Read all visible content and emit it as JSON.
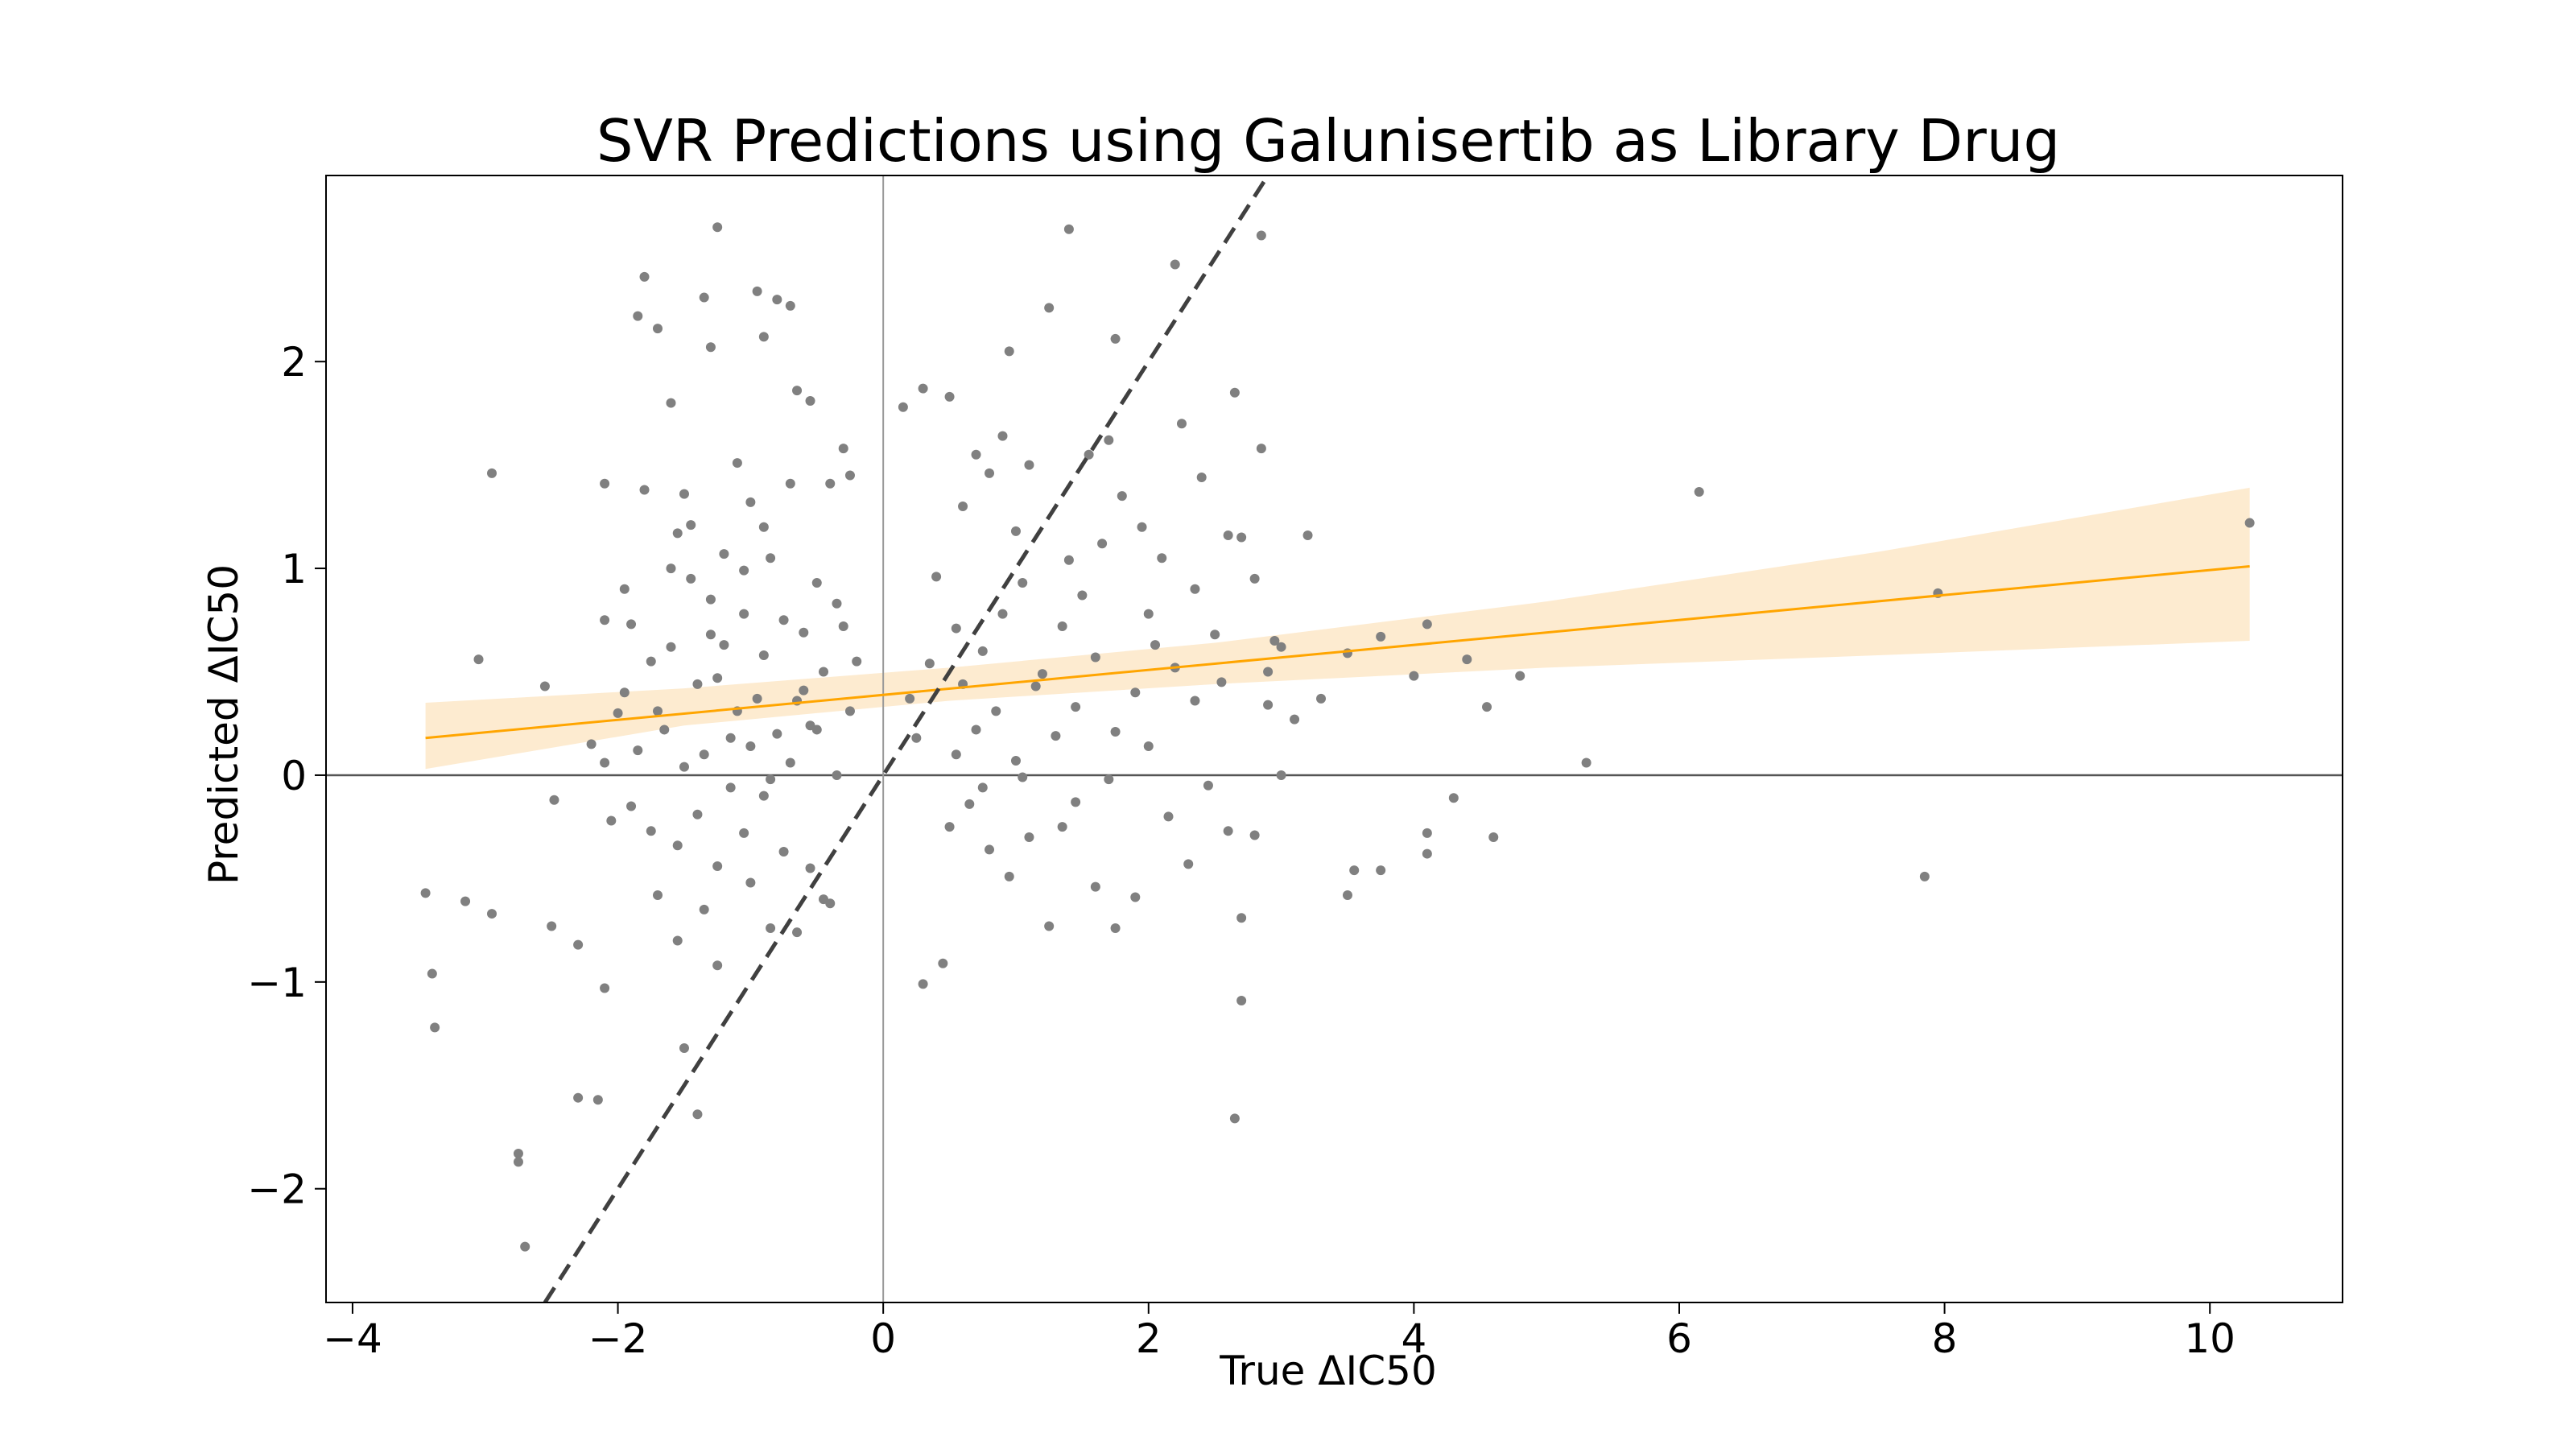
{
  "chart_data": {
    "type": "scatter",
    "title": "SVR Predictions using Galunisertib as Library Drug",
    "xlabel": "True ΔIC50",
    "ylabel": "Predicted ΔIC50",
    "xlim": [
      -4.2,
      11.0
    ],
    "ylim": [
      -2.55,
      2.9
    ],
    "x_ticks": [
      -4,
      -2,
      0,
      2,
      4,
      6,
      8,
      10
    ],
    "y_ticks": [
      -2,
      -1,
      0,
      1,
      2
    ],
    "grid": false,
    "colors": {
      "points": "#808080",
      "regression_line": "#ffa500",
      "confidence_band": "#fdebd0",
      "identity_line": "#404040",
      "zero_lines": "#555555"
    },
    "identity_line": {
      "slope": 1,
      "intercept": 0,
      "style": "dashed"
    },
    "regression": {
      "x_start": -3.45,
      "y_start": 0.18,
      "x_end": 10.3,
      "y_end": 1.01,
      "band": [
        {
          "x": -3.45,
          "lo": 0.03,
          "hi": 0.35
        },
        {
          "x": -1.5,
          "lo": 0.24,
          "hi": 0.42
        },
        {
          "x": 0.5,
          "lo": 0.36,
          "hi": 0.52
        },
        {
          "x": 2.5,
          "lo": 0.44,
          "hi": 0.64
        },
        {
          "x": 5.0,
          "lo": 0.52,
          "hi": 0.84
        },
        {
          "x": 7.5,
          "lo": 0.58,
          "hi": 1.08
        },
        {
          "x": 10.3,
          "lo": 0.65,
          "hi": 1.39
        }
      ]
    },
    "points": [
      [
        -3.45,
        -0.57
      ],
      [
        -3.4,
        -0.96
      ],
      [
        -3.38,
        -1.22
      ],
      [
        -3.15,
        -0.61
      ],
      [
        -3.05,
        0.56
      ],
      [
        -2.95,
        -0.67
      ],
      [
        -2.95,
        1.46
      ],
      [
        -2.75,
        -1.83
      ],
      [
        -2.75,
        -1.87
      ],
      [
        -2.7,
        -2.28
      ],
      [
        -2.55,
        0.43
      ],
      [
        -2.5,
        -0.73
      ],
      [
        -2.48,
        -0.12
      ],
      [
        -2.3,
        -1.56
      ],
      [
        -2.3,
        -0.82
      ],
      [
        -2.2,
        0.15
      ],
      [
        -2.15,
        -1.57
      ],
      [
        -2.1,
        -1.03
      ],
      [
        -2.05,
        -0.22
      ],
      [
        -2.1,
        0.75
      ],
      [
        -2.1,
        1.41
      ],
      [
        -1.85,
        2.22
      ],
      [
        -1.8,
        2.41
      ],
      [
        -1.7,
        2.16
      ],
      [
        -1.6,
        1.8
      ],
      [
        -1.8,
        1.38
      ],
      [
        -1.5,
        1.36
      ],
      [
        -1.35,
        2.31
      ],
      [
        -1.3,
        2.07
      ],
      [
        -1.25,
        2.65
      ],
      [
        -1.1,
        1.51
      ],
      [
        -0.95,
        2.34
      ],
      [
        -0.9,
        2.12
      ],
      [
        -0.8,
        2.3
      ],
      [
        -0.7,
        2.27
      ],
      [
        -0.65,
        1.86
      ],
      [
        -0.55,
        1.81
      ],
      [
        -0.4,
        1.41
      ],
      [
        -0.3,
        1.58
      ],
      [
        -0.25,
        1.45
      ],
      [
        -1.55,
        1.17
      ],
      [
        -1.45,
        0.95
      ],
      [
        -1.3,
        0.85
      ],
      [
        -1.2,
        1.07
      ],
      [
        -1.05,
        0.99
      ],
      [
        -0.9,
        1.2
      ],
      [
        -0.75,
        0.75
      ],
      [
        -0.6,
        0.69
      ],
      [
        -0.5,
        0.93
      ],
      [
        -0.35,
        0.83
      ],
      [
        -1.95,
        0.9
      ],
      [
        -1.9,
        0.73
      ],
      [
        -1.75,
        0.55
      ],
      [
        -1.6,
        0.62
      ],
      [
        -1.4,
        0.44
      ],
      [
        -1.25,
        0.47
      ],
      [
        -1.1,
        0.31
      ],
      [
        -0.95,
        0.37
      ],
      [
        -0.8,
        0.2
      ],
      [
        -0.6,
        0.41
      ],
      [
        -2.0,
        0.3
      ],
      [
        -1.85,
        0.12
      ],
      [
        -1.65,
        0.22
      ],
      [
        -1.5,
        0.04
      ],
      [
        -1.35,
        0.1
      ],
      [
        -1.15,
        -0.06
      ],
      [
        -1.0,
        0.14
      ],
      [
        -0.85,
        -0.02
      ],
      [
        -0.7,
        0.06
      ],
      [
        -0.5,
        0.22
      ],
      [
        -1.9,
        -0.15
      ],
      [
        -1.75,
        -0.27
      ],
      [
        -1.55,
        -0.34
      ],
      [
        -1.4,
        -0.19
      ],
      [
        -1.25,
        -0.44
      ],
      [
        -1.05,
        -0.28
      ],
      [
        -0.9,
        -0.1
      ],
      [
        -0.75,
        -0.37
      ],
      [
        -0.55,
        -0.45
      ],
      [
        -0.4,
        -0.62
      ],
      [
        -1.7,
        -0.58
      ],
      [
        -1.55,
        -0.8
      ],
      [
        -1.35,
        -0.65
      ],
      [
        -1.25,
        -0.92
      ],
      [
        -1.0,
        -0.52
      ],
      [
        -0.85,
        -0.74
      ],
      [
        -0.65,
        -0.76
      ],
      [
        -0.45,
        -0.6
      ],
      [
        -1.5,
        -1.32
      ],
      [
        -1.4,
        -1.64
      ],
      [
        -2.1,
        0.06
      ],
      [
        -1.95,
        0.4
      ],
      [
        -1.7,
        0.31
      ],
      [
        -1.3,
        0.68
      ],
      [
        -1.05,
        0.78
      ],
      [
        -0.9,
        0.58
      ],
      [
        -0.65,
        0.36
      ],
      [
        -0.45,
        0.5
      ],
      [
        -0.3,
        0.72
      ],
      [
        -0.2,
        0.55
      ],
      [
        -1.6,
        1.0
      ],
      [
        -1.45,
        1.21
      ],
      [
        -1.2,
        0.63
      ],
      [
        -1.0,
        1.32
      ],
      [
        -0.85,
        1.05
      ],
      [
        -0.7,
        1.41
      ],
      [
        -0.55,
        0.24
      ],
      [
        -0.35,
        0.0
      ],
      [
        -0.25,
        0.31
      ],
      [
        -1.15,
        0.18
      ],
      [
        0.15,
        1.78
      ],
      [
        0.3,
        1.87
      ],
      [
        0.5,
        1.83
      ],
      [
        0.45,
        -0.91
      ],
      [
        0.3,
        -1.01
      ],
      [
        0.2,
        0.37
      ],
      [
        0.35,
        0.54
      ],
      [
        0.55,
        0.71
      ],
      [
        0.4,
        0.96
      ],
      [
        0.25,
        0.18
      ],
      [
        0.6,
        1.3
      ],
      [
        0.7,
        1.55
      ],
      [
        0.8,
        1.46
      ],
      [
        0.9,
        1.64
      ],
      [
        1.0,
        1.18
      ],
      [
        1.1,
        1.5
      ],
      [
        1.25,
        2.26
      ],
      [
        1.4,
        1.04
      ],
      [
        1.55,
        1.55
      ],
      [
        1.7,
        1.62
      ],
      [
        0.6,
        0.44
      ],
      [
        0.75,
        0.6
      ],
      [
        0.9,
        0.78
      ],
      [
        1.05,
        0.93
      ],
      [
        1.2,
        0.49
      ],
      [
        1.35,
        0.72
      ],
      [
        1.5,
        0.87
      ],
      [
        1.65,
        1.12
      ],
      [
        1.8,
        1.35
      ],
      [
        1.95,
        1.2
      ],
      [
        0.55,
        0.1
      ],
      [
        0.7,
        0.22
      ],
      [
        0.85,
        0.31
      ],
      [
        1.0,
        0.07
      ],
      [
        1.15,
        0.43
      ],
      [
        1.3,
        0.19
      ],
      [
        1.45,
        0.33
      ],
      [
        1.6,
        0.57
      ],
      [
        1.75,
        0.21
      ],
      [
        1.9,
        0.4
      ],
      [
        0.5,
        -0.25
      ],
      [
        0.65,
        -0.14
      ],
      [
        0.8,
        -0.36
      ],
      [
        0.95,
        -0.49
      ],
      [
        1.1,
        -0.3
      ],
      [
        1.25,
        -0.73
      ],
      [
        1.45,
        -0.13
      ],
      [
        1.6,
        -0.54
      ],
      [
        1.75,
        -0.74
      ],
      [
        1.9,
        -0.59
      ],
      [
        2.0,
        0.78
      ],
      [
        2.1,
        1.05
      ],
      [
        2.2,
        0.52
      ],
      [
        2.35,
        0.9
      ],
      [
        2.5,
        0.68
      ],
      [
        2.6,
        1.16
      ],
      [
        2.7,
        1.15
      ],
      [
        2.8,
        0.95
      ],
      [
        2.9,
        0.5
      ],
      [
        2.95,
        0.65
      ],
      [
        2.0,
        0.14
      ],
      [
        2.15,
        -0.2
      ],
      [
        2.3,
        -0.43
      ],
      [
        2.45,
        -0.05
      ],
      [
        2.6,
        -0.27
      ],
      [
        2.7,
        -0.69
      ],
      [
        2.8,
        -0.29
      ],
      [
        2.9,
        0.34
      ],
      [
        3.0,
        0.0
      ],
      [
        3.1,
        0.27
      ],
      [
        2.25,
        1.7
      ],
      [
        2.4,
        1.44
      ],
      [
        2.65,
        1.85
      ],
      [
        2.85,
        1.58
      ],
      [
        2.2,
        2.47
      ],
      [
        2.85,
        2.61
      ],
      [
        1.75,
        2.11
      ],
      [
        1.4,
        2.64
      ],
      [
        0.95,
        2.05
      ],
      [
        2.7,
        -1.09
      ],
      [
        2.65,
        -1.66
      ],
      [
        3.2,
        1.16
      ],
      [
        3.3,
        0.37
      ],
      [
        3.5,
        0.59
      ],
      [
        3.55,
        -0.46
      ],
      [
        3.5,
        -0.58
      ],
      [
        3.75,
        0.67
      ],
      [
        3.75,
        -0.46
      ],
      [
        4.0,
        0.48
      ],
      [
        4.1,
        -0.28
      ],
      [
        4.1,
        -0.38
      ],
      [
        4.1,
        0.73
      ],
      [
        4.3,
        -0.11
      ],
      [
        4.4,
        0.56
      ],
      [
        4.55,
        0.33
      ],
      [
        4.6,
        -0.3
      ],
      [
        4.8,
        0.48
      ],
      [
        5.3,
        0.06
      ],
      [
        6.15,
        1.37
      ],
      [
        7.85,
        -0.49
      ],
      [
        7.95,
        0.88
      ],
      [
        10.3,
        1.22
      ],
      [
        0.75,
        -0.06
      ],
      [
        1.05,
        -0.01
      ],
      [
        1.35,
        -0.25
      ],
      [
        1.7,
        -0.02
      ],
      [
        2.05,
        0.63
      ],
      [
        2.35,
        0.36
      ],
      [
        2.55,
        0.45
      ],
      [
        3.0,
        0.62
      ]
    ]
  }
}
